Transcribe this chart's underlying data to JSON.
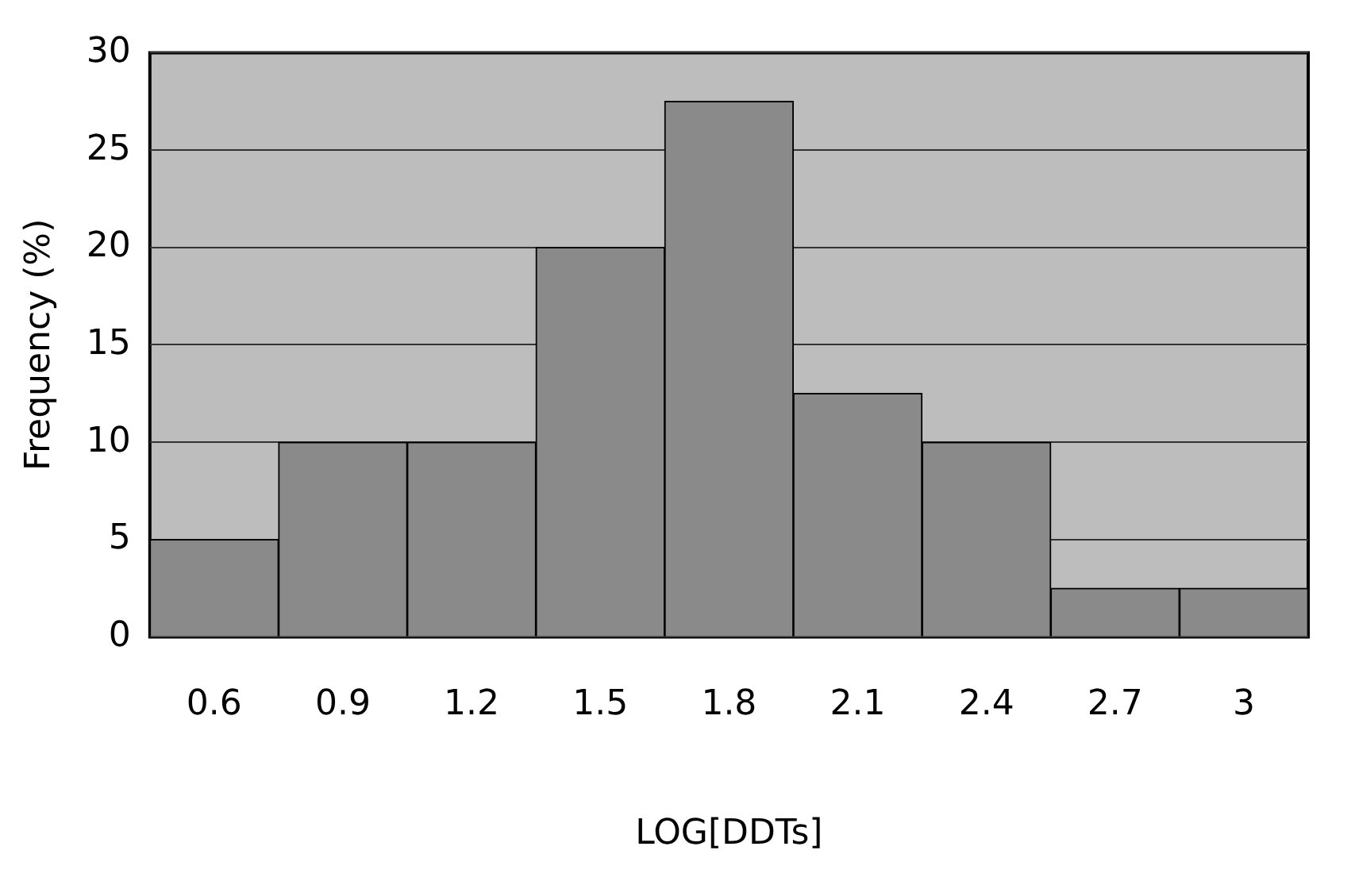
{
  "chart_data": {
    "type": "bar",
    "xlabel": "LOG[DDTs]",
    "ylabel": "Frequency (%)",
    "categories": [
      "0.6",
      "0.9",
      "1.2",
      "1.5",
      "1.8",
      "2.1",
      "2.4",
      "2.7",
      "3"
    ],
    "values": [
      5,
      10,
      10,
      20,
      27.5,
      12.5,
      10,
      2.5,
      2.5
    ],
    "color": "#8a8a8a",
    "ylim": [
      0,
      30
    ],
    "yticks": [
      0,
      5,
      10,
      15,
      20,
      25,
      30
    ],
    "grid": "y",
    "legend": false
  }
}
